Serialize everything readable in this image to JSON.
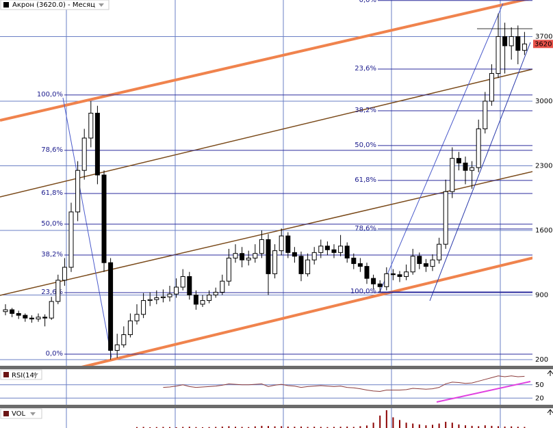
{
  "chart_data": [
    {
      "type": "candlestick",
      "title": "Акрон (3620.0) - Месяц",
      "ohlc": [
        [
          720,
          800,
          680,
          740
        ],
        [
          740,
          760,
          660,
          700
        ],
        [
          700,
          730,
          640,
          680
        ],
        [
          680,
          700,
          610,
          650
        ],
        [
          650,
          680,
          600,
          640
        ],
        [
          640,
          700,
          610,
          660
        ],
        [
          660,
          690,
          560,
          650
        ],
        [
          650,
          880,
          630,
          830
        ],
        [
          830,
          1120,
          800,
          1060
        ],
        [
          1060,
          1300,
          1000,
          1200
        ],
        [
          1200,
          1900,
          1150,
          1800
        ],
        [
          1800,
          2350,
          1700,
          2250
        ],
        [
          2250,
          2700,
          2150,
          2600
        ],
        [
          2600,
          3000,
          2500,
          2870
        ],
        [
          2870,
          2950,
          2100,
          2200
        ],
        [
          2200,
          2250,
          1150,
          1250
        ],
        [
          1250,
          1300,
          200,
          300
        ],
        [
          300,
          480,
          220,
          360
        ],
        [
          360,
          560,
          330,
          470
        ],
        [
          470,
          700,
          440,
          620
        ],
        [
          620,
          800,
          580,
          690
        ],
        [
          690,
          920,
          650,
          840
        ],
        [
          840,
          930,
          780,
          850
        ],
        [
          850,
          950,
          800,
          870
        ],
        [
          870,
          960,
          820,
          880
        ],
        [
          880,
          1000,
          830,
          910
        ],
        [
          910,
          1080,
          870,
          985
        ],
        [
          985,
          1180,
          950,
          1100
        ],
        [
          1100,
          1150,
          850,
          900
        ],
        [
          900,
          950,
          740,
          800
        ],
        [
          800,
          900,
          770,
          840
        ],
        [
          840,
          950,
          810,
          900
        ],
        [
          900,
          980,
          870,
          930
        ],
        [
          930,
          1120,
          900,
          1050
        ],
        [
          1050,
          1400,
          1000,
          1300
        ],
        [
          1300,
          1450,
          1250,
          1350
        ],
        [
          1350,
          1420,
          1200,
          1280
        ],
        [
          1280,
          1380,
          1220,
          1300
        ],
        [
          1300,
          1450,
          1250,
          1350
        ],
        [
          1350,
          1600,
          1300,
          1500
        ],
        [
          1500,
          1560,
          900,
          1130
        ],
        [
          1130,
          1450,
          1080,
          1380
        ],
        [
          1380,
          1620,
          1330,
          1540
        ],
        [
          1540,
          1580,
          1300,
          1360
        ],
        [
          1360,
          1420,
          1250,
          1320
        ],
        [
          1320,
          1370,
          1050,
          1130
        ],
        [
          1130,
          1350,
          1100,
          1280
        ],
        [
          1280,
          1420,
          1230,
          1360
        ],
        [
          1360,
          1500,
          1300,
          1430
        ],
        [
          1430,
          1480,
          1330,
          1390
        ],
        [
          1390,
          1450,
          1300,
          1360
        ],
        [
          1360,
          1550,
          1320,
          1430
        ],
        [
          1430,
          1470,
          1250,
          1300
        ],
        [
          1300,
          1350,
          1180,
          1240
        ],
        [
          1240,
          1300,
          1150,
          1210
        ],
        [
          1210,
          1250,
          1020,
          1080
        ],
        [
          1080,
          1120,
          960,
          1020
        ],
        [
          1020,
          1060,
          930,
          990
        ],
        [
          990,
          1200,
          950,
          1130
        ],
        [
          1130,
          1180,
          1060,
          1120
        ],
        [
          1120,
          1160,
          1040,
          1100
        ],
        [
          1100,
          1230,
          1060,
          1150
        ],
        [
          1150,
          1400,
          1120,
          1320
        ],
        [
          1320,
          1360,
          1180,
          1240
        ],
        [
          1240,
          1290,
          1150,
          1210
        ],
        [
          1210,
          1340,
          1160,
          1280
        ],
        [
          1280,
          1520,
          1240,
          1450
        ],
        [
          1450,
          2150,
          1400,
          2020
        ],
        [
          2020,
          2500,
          1950,
          2380
        ],
        [
          2380,
          2450,
          2250,
          2330
        ],
        [
          2330,
          2400,
          2100,
          2250
        ],
        [
          2250,
          2350,
          2050,
          2280
        ],
        [
          2280,
          2800,
          2230,
          2700
        ],
        [
          2700,
          3100,
          2650,
          3000
        ],
        [
          3000,
          3400,
          2950,
          3300
        ],
        [
          3300,
          3950,
          3250,
          3700
        ],
        [
          3700,
          3850,
          3300,
          3600
        ],
        [
          3600,
          3800,
          3450,
          3700
        ],
        [
          3700,
          3820,
          3400,
          3550
        ],
        [
          3550,
          3750,
          3500,
          3620
        ]
      ],
      "up_color": "#ffffff",
      "down_color": "#000000",
      "ylim": [
        133,
        4096
      ],
      "yticks": [
        200,
        900,
        1600,
        2300,
        3000,
        3700
      ],
      "last": 3620,
      "last_color": "#e8524a",
      "fib": [
        {
          "levels": [
            {
              "label": "100,0%",
              "value": 3067
            },
            {
              "label": "78,6%",
              "value": 2467
            },
            {
              "label": "61,8%",
              "value": 2000
            },
            {
              "label": "50,0%",
              "value": 1667
            },
            {
              "label": "38,2%",
              "value": 1333
            },
            {
              "label": "23,6%",
              "value": 926
            },
            {
              "label": "0,0%",
              "value": 259
            }
          ]
        },
        {
          "levels": [
            {
              "label": "0,0%",
              "value": 4090
            },
            {
              "label": "23,6%",
              "value": 3348
            },
            {
              "label": "38,2%",
              "value": 2896
            },
            {
              "label": "50,0%",
              "value": 2519
            },
            {
              "label": "61,8%",
              "value": 2141
            },
            {
              "label": "78,6%",
              "value": 1615
            },
            {
              "label": "100,0%",
              "value": 933
            }
          ]
        }
      ]
    },
    {
      "type": "line",
      "title": "RSI(14)",
      "color": "#8b3a3a",
      "ylim": [
        5,
        85
      ],
      "yticks": [
        50,
        20
      ],
      "values": [
        null,
        null,
        null,
        null,
        null,
        null,
        null,
        null,
        null,
        null,
        null,
        null,
        null,
        null,
        null,
        null,
        null,
        null,
        null,
        null,
        null,
        null,
        null,
        null,
        44,
        45,
        47,
        50,
        46,
        44,
        45,
        46,
        47,
        49,
        52,
        51,
        50,
        50,
        51,
        52,
        46,
        49,
        51,
        48,
        47,
        44,
        46,
        47,
        48,
        47,
        46,
        47,
        44,
        43,
        41,
        38,
        36,
        35,
        38,
        38,
        38,
        39,
        42,
        41,
        40,
        41,
        44,
        52,
        56,
        55,
        53,
        54,
        58,
        62,
        66,
        70,
        68,
        70,
        68,
        69
      ]
    },
    {
      "type": "bar",
      "title": "VOL",
      "color": "#8b0000",
      "ylim": [
        0,
        100
      ],
      "values": [
        null,
        null,
        null,
        null,
        null,
        null,
        null,
        null,
        null,
        null,
        null,
        null,
        null,
        null,
        null,
        null,
        null,
        null,
        null,
        null,
        5,
        6,
        4,
        5,
        6,
        5,
        4,
        6,
        7,
        5,
        4,
        5,
        6,
        8,
        10,
        7,
        6,
        5,
        9,
        12,
        11,
        9,
        10,
        8,
        7,
        8,
        6,
        7,
        6,
        5,
        6,
        7,
        8,
        6,
        10,
        14,
        30,
        70,
        100,
        60,
        45,
        30,
        25,
        20,
        15,
        18,
        25,
        35,
        30,
        20,
        15,
        12,
        10,
        15,
        12,
        10,
        8,
        9,
        7,
        6
      ]
    }
  ]
}
